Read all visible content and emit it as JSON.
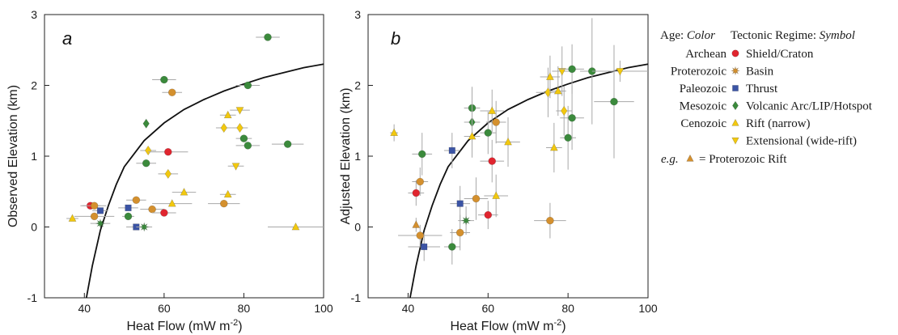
{
  "chart_data": [
    {
      "panel": "a",
      "type": "scatter",
      "xlabel": "Heat Flow (mW m",
      "xlabel_sup": "-2",
      "xlabel_end": ")",
      "ylabel": "Observed Elevation (km)",
      "xlim": [
        30,
        100
      ],
      "ylim": [
        -1,
        3
      ],
      "xticks": [
        "40",
        "60",
        "80",
        "100"
      ],
      "yticks": [
        "-1",
        "0",
        "1",
        "2",
        "3"
      ],
      "curve": [
        [
          40.5,
          -1.0
        ],
        [
          42,
          -0.55
        ],
        [
          44,
          -0.05
        ],
        [
          46,
          0.3
        ],
        [
          48,
          0.6
        ],
        [
          50,
          0.85
        ],
        [
          55,
          1.22
        ],
        [
          60,
          1.47
        ],
        [
          65,
          1.66
        ],
        [
          70,
          1.8
        ],
        [
          75,
          1.92
        ],
        [
          80,
          2.02
        ],
        [
          85,
          2.11
        ],
        [
          90,
          2.18
        ],
        [
          95,
          2.25
        ],
        [
          100,
          2.3
        ]
      ],
      "points": [
        {
          "x": 37,
          "y": 0.12,
          "xerr": 1.5,
          "yerr": 0,
          "age": "Cenozoic",
          "regime": "Rift (narrow)"
        },
        {
          "x": 41.5,
          "y": 0.3,
          "xerr": 2.5,
          "yerr": 0,
          "age": "Archean",
          "regime": "Shield/Craton"
        },
        {
          "x": 42.5,
          "y": 0.3,
          "xerr": 3,
          "yerr": 0,
          "age": "Proterozoic",
          "regime": "Shield/Craton"
        },
        {
          "x": 42.5,
          "y": 0.15,
          "xerr": 5,
          "yerr": 0,
          "age": "Proterozoic",
          "regime": "Shield/Craton"
        },
        {
          "x": 44,
          "y": 0.23,
          "xerr": 2,
          "yerr": 0,
          "age": "Paleozoic",
          "regime": "Thrust"
        },
        {
          "x": 44,
          "y": 0.05,
          "xerr": 2.5,
          "yerr": 0,
          "age": "Mesozoic",
          "regime": "Basin"
        },
        {
          "x": 51,
          "y": 0.27,
          "xerr": 2.5,
          "yerr": 0,
          "age": "Paleozoic",
          "regime": "Thrust"
        },
        {
          "x": 51,
          "y": 0.15,
          "xerr": 1.5,
          "yerr": 0,
          "age": "Mesozoic",
          "regime": "Shield/Craton"
        },
        {
          "x": 53,
          "y": 0.0,
          "xerr": 2.5,
          "yerr": 0,
          "age": "Paleozoic",
          "regime": "Thrust"
        },
        {
          "x": 53,
          "y": 0.38,
          "xerr": 2.5,
          "yerr": 0,
          "age": "Proterozoic",
          "regime": "Shield/Craton"
        },
        {
          "x": 55,
          "y": 0.0,
          "xerr": 2,
          "yerr": 0,
          "age": "Mesozoic",
          "regime": "Basin"
        },
        {
          "x": 55.5,
          "y": 1.46,
          "xerr": 0,
          "yerr": 0,
          "age": "Mesozoic",
          "regime": "Volcanic Arc/LIP/Hotspot"
        },
        {
          "x": 55.5,
          "y": 0.9,
          "xerr": 2.5,
          "yerr": 0,
          "age": "Mesozoic",
          "regime": "Shield/Craton"
        },
        {
          "x": 56,
          "y": 1.08,
          "xerr": 2,
          "yerr": 0,
          "age": "Cenozoic",
          "regime": "Volcanic Arc/LIP/Hotspot"
        },
        {
          "x": 57,
          "y": 0.25,
          "xerr": 3,
          "yerr": 0,
          "age": "Proterozoic",
          "regime": "Shield/Craton"
        },
        {
          "x": 60,
          "y": 2.08,
          "xerr": 3,
          "yerr": 0,
          "age": "Mesozoic",
          "regime": "Shield/Craton"
        },
        {
          "x": 60,
          "y": 0.2,
          "xerr": 3,
          "yerr": 0,
          "age": "Archean",
          "regime": "Shield/Craton"
        },
        {
          "x": 61,
          "y": 1.06,
          "xerr": 5,
          "yerr": 0,
          "age": "Archean",
          "regime": "Shield/Craton"
        },
        {
          "x": 61,
          "y": 0.75,
          "xerr": 2.5,
          "yerr": 0,
          "age": "Cenozoic",
          "regime": "Volcanic Arc/LIP/Hotspot"
        },
        {
          "x": 62,
          "y": 1.9,
          "xerr": 2.5,
          "yerr": 0,
          "age": "Proterozoic",
          "regime": "Shield/Craton"
        },
        {
          "x": 62,
          "y": 0.33,
          "xerr": 5,
          "yerr": 0,
          "age": "Cenozoic",
          "regime": "Rift (narrow)"
        },
        {
          "x": 65,
          "y": 0.49,
          "xerr": 3,
          "yerr": 0,
          "age": "Cenozoic",
          "regime": "Rift (narrow)"
        },
        {
          "x": 75,
          "y": 1.4,
          "xerr": 2,
          "yerr": 0,
          "age": "Cenozoic",
          "regime": "Volcanic Arc/LIP/Hotspot"
        },
        {
          "x": 75,
          "y": 0.33,
          "xerr": 4,
          "yerr": 0,
          "age": "Proterozoic",
          "regime": "Shield/Craton"
        },
        {
          "x": 76,
          "y": 1.58,
          "xerr": 2,
          "yerr": 0,
          "age": "Cenozoic",
          "regime": "Rift (narrow)"
        },
        {
          "x": 76,
          "y": 0.46,
          "xerr": 2,
          "yerr": 0,
          "age": "Cenozoic",
          "regime": "Rift (narrow)"
        },
        {
          "x": 78,
          "y": 0.86,
          "xerr": 2,
          "yerr": 0,
          "age": "Cenozoic",
          "regime": "Extensional (wide-rift)"
        },
        {
          "x": 79,
          "y": 1.65,
          "xerr": 2.5,
          "yerr": 0,
          "age": "Cenozoic",
          "regime": "Extensional (wide-rift)"
        },
        {
          "x": 79,
          "y": 1.4,
          "xerr": 2,
          "yerr": 0,
          "age": "Cenozoic",
          "regime": "Volcanic Arc/LIP/Hotspot"
        },
        {
          "x": 80,
          "y": 1.25,
          "xerr": 2,
          "yerr": 0,
          "age": "Mesozoic",
          "regime": "Shield/Craton"
        },
        {
          "x": 81,
          "y": 2.0,
          "xerr": 3,
          "yerr": 0,
          "age": "Mesozoic",
          "regime": "Shield/Craton"
        },
        {
          "x": 81,
          "y": 1.15,
          "xerr": 3,
          "yerr": 0,
          "age": "Mesozoic",
          "regime": "Shield/Craton"
        },
        {
          "x": 86,
          "y": 2.68,
          "xerr": 3,
          "yerr": 0,
          "age": "Mesozoic",
          "regime": "Shield/Craton"
        },
        {
          "x": 91,
          "y": 1.17,
          "xerr": 4,
          "yerr": 0,
          "age": "Mesozoic",
          "regime": "Shield/Craton"
        },
        {
          "x": 93,
          "y": 0.0,
          "xerr": 7,
          "yerr": 0,
          "age": "Cenozoic",
          "regime": "Rift (narrow)"
        }
      ]
    },
    {
      "panel": "b",
      "type": "scatter",
      "xlabel": "Heat Flow (mW m",
      "xlabel_sup": "-2",
      "xlabel_end": ")",
      "ylabel": "Adjusted Elevation (km)",
      "xlim": [
        30,
        100
      ],
      "ylim": [
        -1,
        3
      ],
      "xticks": [
        "40",
        "60",
        "80",
        "100"
      ],
      "yticks": [
        "-1",
        "0",
        "1",
        "2",
        "3"
      ],
      "curve": [
        [
          40.5,
          -1.0
        ],
        [
          42,
          -0.55
        ],
        [
          44,
          -0.05
        ],
        [
          46,
          0.3
        ],
        [
          48,
          0.6
        ],
        [
          50,
          0.85
        ],
        [
          55,
          1.22
        ],
        [
          60,
          1.47
        ],
        [
          65,
          1.66
        ],
        [
          70,
          1.8
        ],
        [
          75,
          1.92
        ],
        [
          80,
          2.02
        ],
        [
          85,
          2.11
        ],
        [
          90,
          2.18
        ],
        [
          95,
          2.25
        ],
        [
          100,
          2.3
        ]
      ],
      "points": [
        {
          "x": 36.5,
          "y": 1.33,
          "xerr": 1,
          "yerr": 0.12,
          "age": "Cenozoic",
          "regime": "Rift (narrow)"
        },
        {
          "x": 42,
          "y": 0.03,
          "xerr": 0,
          "yerr": 0.1,
          "age": "Proterozoic",
          "regime": "Rift (narrow)"
        },
        {
          "x": 42,
          "y": 0.48,
          "xerr": 2,
          "yerr": 0.18,
          "age": "Archean",
          "regime": "Shield/Craton"
        },
        {
          "x": 43,
          "y": 0.64,
          "xerr": 2,
          "yerr": 0.2,
          "age": "Proterozoic",
          "regime": "Shield/Craton"
        },
        {
          "x": 43,
          "y": -0.12,
          "xerr": 5.5,
          "yerr": 0.15,
          "age": "Proterozoic",
          "regime": "Shield/Craton"
        },
        {
          "x": 43.5,
          "y": 1.03,
          "xerr": 2.5,
          "yerr": 0.3,
          "age": "Mesozoic",
          "regime": "Shield/Craton"
        },
        {
          "x": 44,
          "y": -0.28,
          "xerr": 4,
          "yerr": 0.2,
          "age": "Paleozoic",
          "regime": "Thrust"
        },
        {
          "x": 51,
          "y": -0.28,
          "xerr": 2,
          "yerr": 0.25,
          "age": "Mesozoic",
          "regime": "Shield/Craton"
        },
        {
          "x": 51,
          "y": 1.08,
          "xerr": 2,
          "yerr": 0.25,
          "age": "Paleozoic",
          "regime": "Thrust"
        },
        {
          "x": 53,
          "y": 0.33,
          "xerr": 2.5,
          "yerr": 0.25,
          "age": "Paleozoic",
          "regime": "Thrust"
        },
        {
          "x": 53,
          "y": -0.08,
          "xerr": 2.5,
          "yerr": 0.25,
          "age": "Proterozoic",
          "regime": "Shield/Craton"
        },
        {
          "x": 54.5,
          "y": 0.09,
          "xerr": 2,
          "yerr": 0.2,
          "age": "Mesozoic",
          "regime": "Basin"
        },
        {
          "x": 56,
          "y": 1.68,
          "xerr": 2,
          "yerr": 0.3,
          "age": "Mesozoic",
          "regime": "Shield/Craton"
        },
        {
          "x": 56,
          "y": 1.48,
          "xerr": 2,
          "yerr": 0.3,
          "age": "Mesozoic",
          "regime": "Volcanic Arc/LIP/Hotspot"
        },
        {
          "x": 56,
          "y": 1.28,
          "xerr": 2,
          "yerr": 0.3,
          "age": "Cenozoic",
          "regime": "Rift (narrow)"
        },
        {
          "x": 57,
          "y": 0.4,
          "xerr": 3,
          "yerr": 0.3,
          "age": "Proterozoic",
          "regime": "Shield/Craton"
        },
        {
          "x": 60,
          "y": 1.33,
          "xerr": 2,
          "yerr": 0.3,
          "age": "Mesozoic",
          "regime": "Shield/Craton"
        },
        {
          "x": 60,
          "y": 0.17,
          "xerr": 2.5,
          "yerr": 0.2,
          "age": "Archean",
          "regime": "Shield/Craton"
        },
        {
          "x": 61,
          "y": 1.64,
          "xerr": 3,
          "yerr": 0.3,
          "age": "Cenozoic",
          "regime": "Rift (narrow)"
        },
        {
          "x": 61,
          "y": 0.93,
          "xerr": 3,
          "yerr": 0.3,
          "age": "Archean",
          "regime": "Shield/Craton"
        },
        {
          "x": 62,
          "y": 1.48,
          "xerr": 2.5,
          "yerr": 0.3,
          "age": "Proterozoic",
          "regime": "Shield/Craton"
        },
        {
          "x": 62,
          "y": 0.44,
          "xerr": 3,
          "yerr": 0.3,
          "age": "Cenozoic",
          "regime": "Rift (narrow)"
        },
        {
          "x": 65,
          "y": 1.2,
          "xerr": 3,
          "yerr": 0.35,
          "age": "Cenozoic",
          "regime": "Rift (narrow)"
        },
        {
          "x": 75,
          "y": 1.9,
          "xerr": 3,
          "yerr": 0.35,
          "age": "Cenozoic",
          "regime": "Volcanic Arc/LIP/Hotspot"
        },
        {
          "x": 75.5,
          "y": 2.12,
          "xerr": 2.5,
          "yerr": 0.3,
          "age": "Cenozoic",
          "regime": "Rift (narrow)"
        },
        {
          "x": 75.5,
          "y": 0.09,
          "xerr": 4,
          "yerr": 0.25,
          "age": "Proterozoic",
          "regime": "Shield/Craton"
        },
        {
          "x": 76.5,
          "y": 1.12,
          "xerr": 2,
          "yerr": 0.35,
          "age": "Cenozoic",
          "regime": "Rift (narrow)"
        },
        {
          "x": 77.5,
          "y": 1.92,
          "xerr": 2,
          "yerr": 0.35,
          "age": "Cenozoic",
          "regime": "Rift (narrow)"
        },
        {
          "x": 78.5,
          "y": 2.2,
          "xerr": 2.5,
          "yerr": 0.35,
          "age": "Cenozoic",
          "regime": "Extensional (wide-rift)"
        },
        {
          "x": 79,
          "y": 1.64,
          "xerr": 2,
          "yerr": 0.35,
          "age": "Cenozoic",
          "regime": "Volcanic Arc/LIP/Hotspot"
        },
        {
          "x": 80,
          "y": 1.26,
          "xerr": 2,
          "yerr": 0.45,
          "age": "Mesozoic",
          "regime": "Shield/Craton"
        },
        {
          "x": 81,
          "y": 2.23,
          "xerr": 3,
          "yerr": 0.35,
          "age": "Mesozoic",
          "regime": "Shield/Craton"
        },
        {
          "x": 81,
          "y": 1.54,
          "xerr": 3,
          "yerr": 0.45,
          "age": "Mesozoic",
          "regime": "Shield/Craton"
        },
        {
          "x": 86,
          "y": 2.2,
          "xerr": 3,
          "yerr": 0.75,
          "age": "Mesozoic",
          "regime": "Shield/Craton"
        },
        {
          "x": 91.5,
          "y": 1.77,
          "xerr": 5,
          "yerr": 0.8,
          "age": "Mesozoic",
          "regime": "Shield/Craton"
        },
        {
          "x": 93,
          "y": 2.2,
          "xerr": 7,
          "yerr": 0.15,
          "age": "Cenozoic",
          "regime": "Extensional (wide-rift)"
        }
      ]
    }
  ],
  "legend": {
    "age_header": "Age:",
    "age_header_ital": "Color",
    "regime_header": "Tectonic Regime:",
    "regime_header_ital": "Symbol",
    "ages": [
      {
        "label": "Archean",
        "color": "#e0252f"
      },
      {
        "label": "Proterozoic",
        "color": "#d4902e"
      },
      {
        "label": "Paleozoic",
        "color": "#3b54a5"
      },
      {
        "label": "Mesozoic",
        "color": "#3b8a3c"
      },
      {
        "label": "Cenozoic",
        "color": "#f2c80f"
      }
    ],
    "regimes": [
      {
        "label": "Shield/Craton",
        "symbol": "circle",
        "color": "#e0252f"
      },
      {
        "label": "Basin",
        "symbol": "star",
        "color": "#d4902e"
      },
      {
        "label": "Thrust",
        "symbol": "square",
        "color": "#3b54a5"
      },
      {
        "label": "Volcanic Arc/LIP/Hotspot",
        "symbol": "diamond",
        "color": "#3b8a3c"
      },
      {
        "label": "Rift (narrow)",
        "symbol": "triangle-up",
        "color": "#f2c80f"
      },
      {
        "label": "Extensional (wide-rift)",
        "symbol": "triangle-down",
        "color": "#f2c80f"
      }
    ],
    "example_prefix": "e.g.",
    "example_color": "#d4902e",
    "example_symbol": "triangle-up",
    "example_text": "= Proterozoic Rift"
  }
}
